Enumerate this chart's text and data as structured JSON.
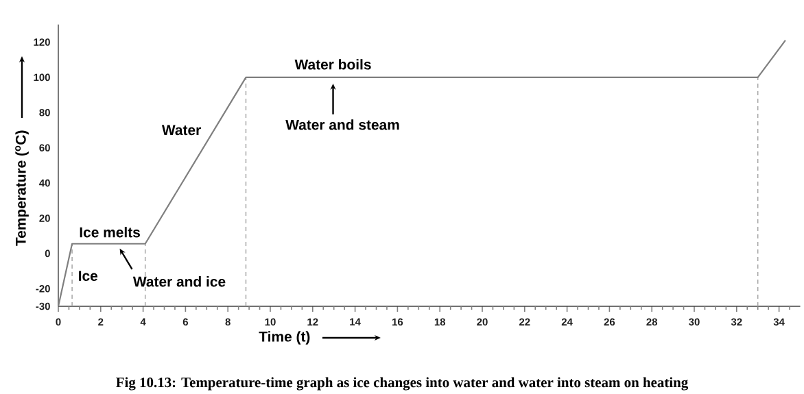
{
  "chart_data": {
    "type": "line",
    "xlabel": "Time (t)",
    "ylabel": "Temperature ($^{o}$C)",
    "series": [
      {
        "color": "#7f7f7f",
        "x": [
          0,
          0.65,
          4.1,
          8.85,
          33.0,
          34.3
        ],
        "values": [
          -30,
          5.5,
          5.5,
          100,
          100,
          121
        ]
      }
    ],
    "xlim": [
      0,
      35
    ],
    "ylim": [
      -30,
      130
    ],
    "xticks": [
      0,
      {
        "value": 0.5,
        "label": null
      },
      {
        "value": 1,
        "label": null
      },
      {
        "value": 1.5,
        "label": null
      },
      2,
      {
        "value": 2.5,
        "label": null
      },
      {
        "value": 3,
        "label": null
      },
      {
        "value": 3.5,
        "label": null
      },
      4,
      {
        "value": 4.5,
        "label": null
      },
      {
        "value": 5,
        "label": null
      },
      {
        "value": 5.5,
        "label": null
      },
      6,
      {
        "value": 6.5,
        "label": null
      },
      {
        "value": 7,
        "label": null
      },
      {
        "value": 7.5,
        "label": null
      },
      8,
      {
        "value": 8.5,
        "label": null
      },
      {
        "value": 9,
        "label": null
      },
      {
        "value": 9.5,
        "label": null
      },
      10,
      {
        "value": 10.5,
        "label": null
      },
      {
        "value": 11,
        "label": null
      },
      {
        "value": 11.5,
        "label": null
      },
      12,
      {
        "value": 12.5,
        "label": null
      },
      {
        "value": 13,
        "label": null
      },
      {
        "value": 13.5,
        "label": null
      },
      14,
      {
        "value": 14.5,
        "label": null
      },
      {
        "value": 15,
        "label": null
      },
      {
        "value": 15.5,
        "label": null
      },
      16,
      {
        "value": 16.5,
        "label": null
      },
      {
        "value": 17,
        "label": null
      },
      {
        "value": 17.5,
        "label": null
      },
      18,
      {
        "value": 18.5,
        "label": null
      },
      {
        "value": 19,
        "label": null
      },
      {
        "value": 19.5,
        "label": null
      },
      20,
      {
        "value": 20.5,
        "label": null
      },
      {
        "value": 21,
        "label": null
      },
      {
        "value": 21.5,
        "label": null
      },
      22,
      {
        "value": 22.5,
        "label": null
      },
      {
        "value": 23,
        "label": null
      },
      {
        "value": 23.5,
        "label": null
      },
      24,
      {
        "value": 24.5,
        "label": null
      },
      {
        "value": 25,
        "label": null
      },
      {
        "value": 25.5,
        "label": null
      },
      26,
      {
        "value": 26.5,
        "label": null
      },
      {
        "value": 27,
        "label": null
      },
      {
        "value": 27.5,
        "label": null
      },
      28,
      {
        "value": 28.5,
        "label": null
      },
      {
        "value": 29,
        "label": null
      },
      {
        "value": 29.5,
        "label": null
      },
      30,
      {
        "value": 30.5,
        "label": null
      },
      {
        "value": 31,
        "label": null
      },
      {
        "value": 31.5,
        "label": null
      },
      32,
      {
        "value": 32.5,
        "label": null
      },
      {
        "value": 33,
        "label": null
      },
      {
        "value": 33.5,
        "label": null
      },
      34,
      {
        "value": 34.5,
        "label": null
      }
    ],
    "yticks": [
      -30,
      -20,
      0,
      20,
      40,
      60,
      80,
      100,
      120
    ],
    "ref_lines": [
      {
        "axis": "x",
        "value": 0.65,
        "color": "#a6a6a6",
        "line_style": "dashed"
      },
      {
        "axis": "x",
        "value": 4.1,
        "color": "#a6a6a6",
        "line_style": "dashed"
      },
      {
        "axis": "x",
        "value": 8.85,
        "color": "#a6a6a6",
        "line_style": "dashed"
      },
      {
        "axis": "x",
        "value": 33.0,
        "color": "#a6a6a6",
        "line_style": "dashed"
      }
    ],
    "annotations": [
      {
        "text": "Ice melts",
        "x": 2.3,
        "y": 5.5
      },
      {
        "text": "Ice",
        "x": 0.3,
        "y": -12
      },
      {
        "text": "Water and ice",
        "x": 2.8,
        "y": 5.5
      },
      {
        "text": "Water",
        "x": 7.3,
        "y": 72
      },
      {
        "text": "Water boils",
        "x": 12.8,
        "y": 100
      },
      {
        "text": "Water and steam",
        "x": 12.8,
        "y": 100
      },
      "Fig 10.13: Temperature-time graph as ice changes into water and water into steam on heating"
    ],
    "marker": "none",
    "line_style": "solid"
  }
}
